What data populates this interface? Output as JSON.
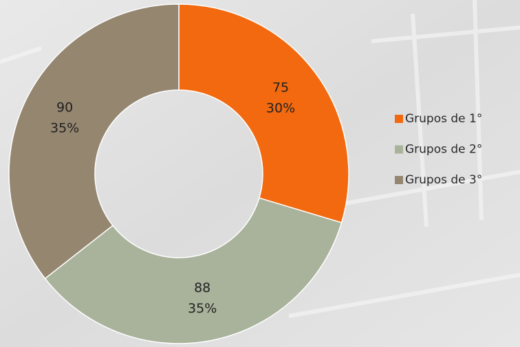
{
  "chart_data": {
    "type": "donut",
    "categories": [
      "Grupos de 1°",
      "Grupos de 2°",
      "Grupos de 3°"
    ],
    "values": [
      75,
      88,
      90
    ],
    "percent_labels": [
      "30%",
      "35%",
      "35%"
    ],
    "colors": [
      "#f2690f",
      "#a9b39b",
      "#958670"
    ],
    "legend": "right"
  }
}
